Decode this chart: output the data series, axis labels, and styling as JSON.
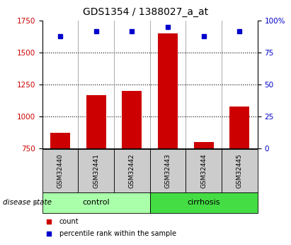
{
  "title": "GDS1354 / 1388027_a_at",
  "samples": [
    "GSM32440",
    "GSM32441",
    "GSM32442",
    "GSM32443",
    "GSM32444",
    "GSM32445"
  ],
  "counts": [
    870,
    1165,
    1200,
    1650,
    800,
    1075
  ],
  "percentiles": [
    88,
    92,
    92,
    95,
    88,
    92
  ],
  "bar_color": "#cc0000",
  "marker_color": "#0000cc",
  "ylim_left": [
    750,
    1750
  ],
  "ylim_right": [
    0,
    100
  ],
  "yticks_left": [
    750,
    1000,
    1250,
    1500,
    1750
  ],
  "yticks_right": [
    0,
    25,
    50,
    75,
    100
  ],
  "ytick_labels_right": [
    "0",
    "25",
    "50",
    "75",
    "100%"
  ],
  "groups": [
    {
      "label": "control",
      "n": 3,
      "color": "#aaffaa"
    },
    {
      "label": "cirrhosis",
      "n": 3,
      "color": "#44dd44"
    }
  ],
  "disease_state_label": "disease state",
  "legend_items": [
    {
      "label": "count",
      "color": "#cc0000"
    },
    {
      "label": "percentile rank within the sample",
      "color": "#0000cc"
    }
  ],
  "cell_bg_color": "#cccccc",
  "title_fontsize": 10,
  "tick_fontsize": 7.5,
  "sample_fontsize": 6.5,
  "group_fontsize": 8,
  "legend_fontsize": 7,
  "disease_state_fontsize": 7.5
}
